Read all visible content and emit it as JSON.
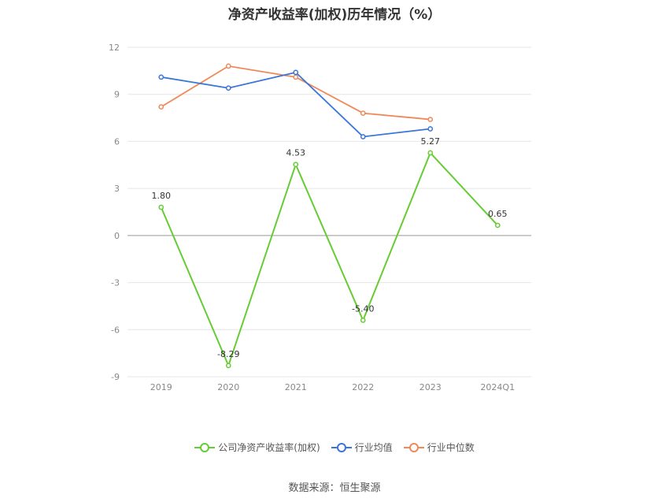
{
  "title": "净资产收益率(加权)历年情况（%）",
  "source": "数据来源：恒生聚源",
  "chart_data": {
    "type": "line",
    "categories": [
      "2019",
      "2020",
      "2021",
      "2022",
      "2023",
      "2024Q1"
    ],
    "ylim": [
      -9,
      12
    ],
    "yticks": [
      12,
      9,
      6,
      3,
      0,
      -3,
      -6,
      -9
    ],
    "grid": true,
    "legend_position": "bottom",
    "series": [
      {
        "name": "公司净资产收益率(加权)",
        "color": "#66cc33",
        "values": [
          1.8,
          -8.29,
          4.53,
          -5.4,
          5.27,
          0.65
        ],
        "labels": [
          "1.80",
          "-8.29",
          "4.53",
          "-5.40",
          "5.27",
          "0.65"
        ]
      },
      {
        "name": "行业均值",
        "color": "#3a75d9",
        "values": [
          10.1,
          9.4,
          10.4,
          6.3,
          6.8,
          null
        ]
      },
      {
        "name": "行业中位数",
        "color": "#f0895a",
        "values": [
          8.2,
          10.8,
          10.1,
          7.8,
          7.4,
          null
        ]
      }
    ]
  }
}
